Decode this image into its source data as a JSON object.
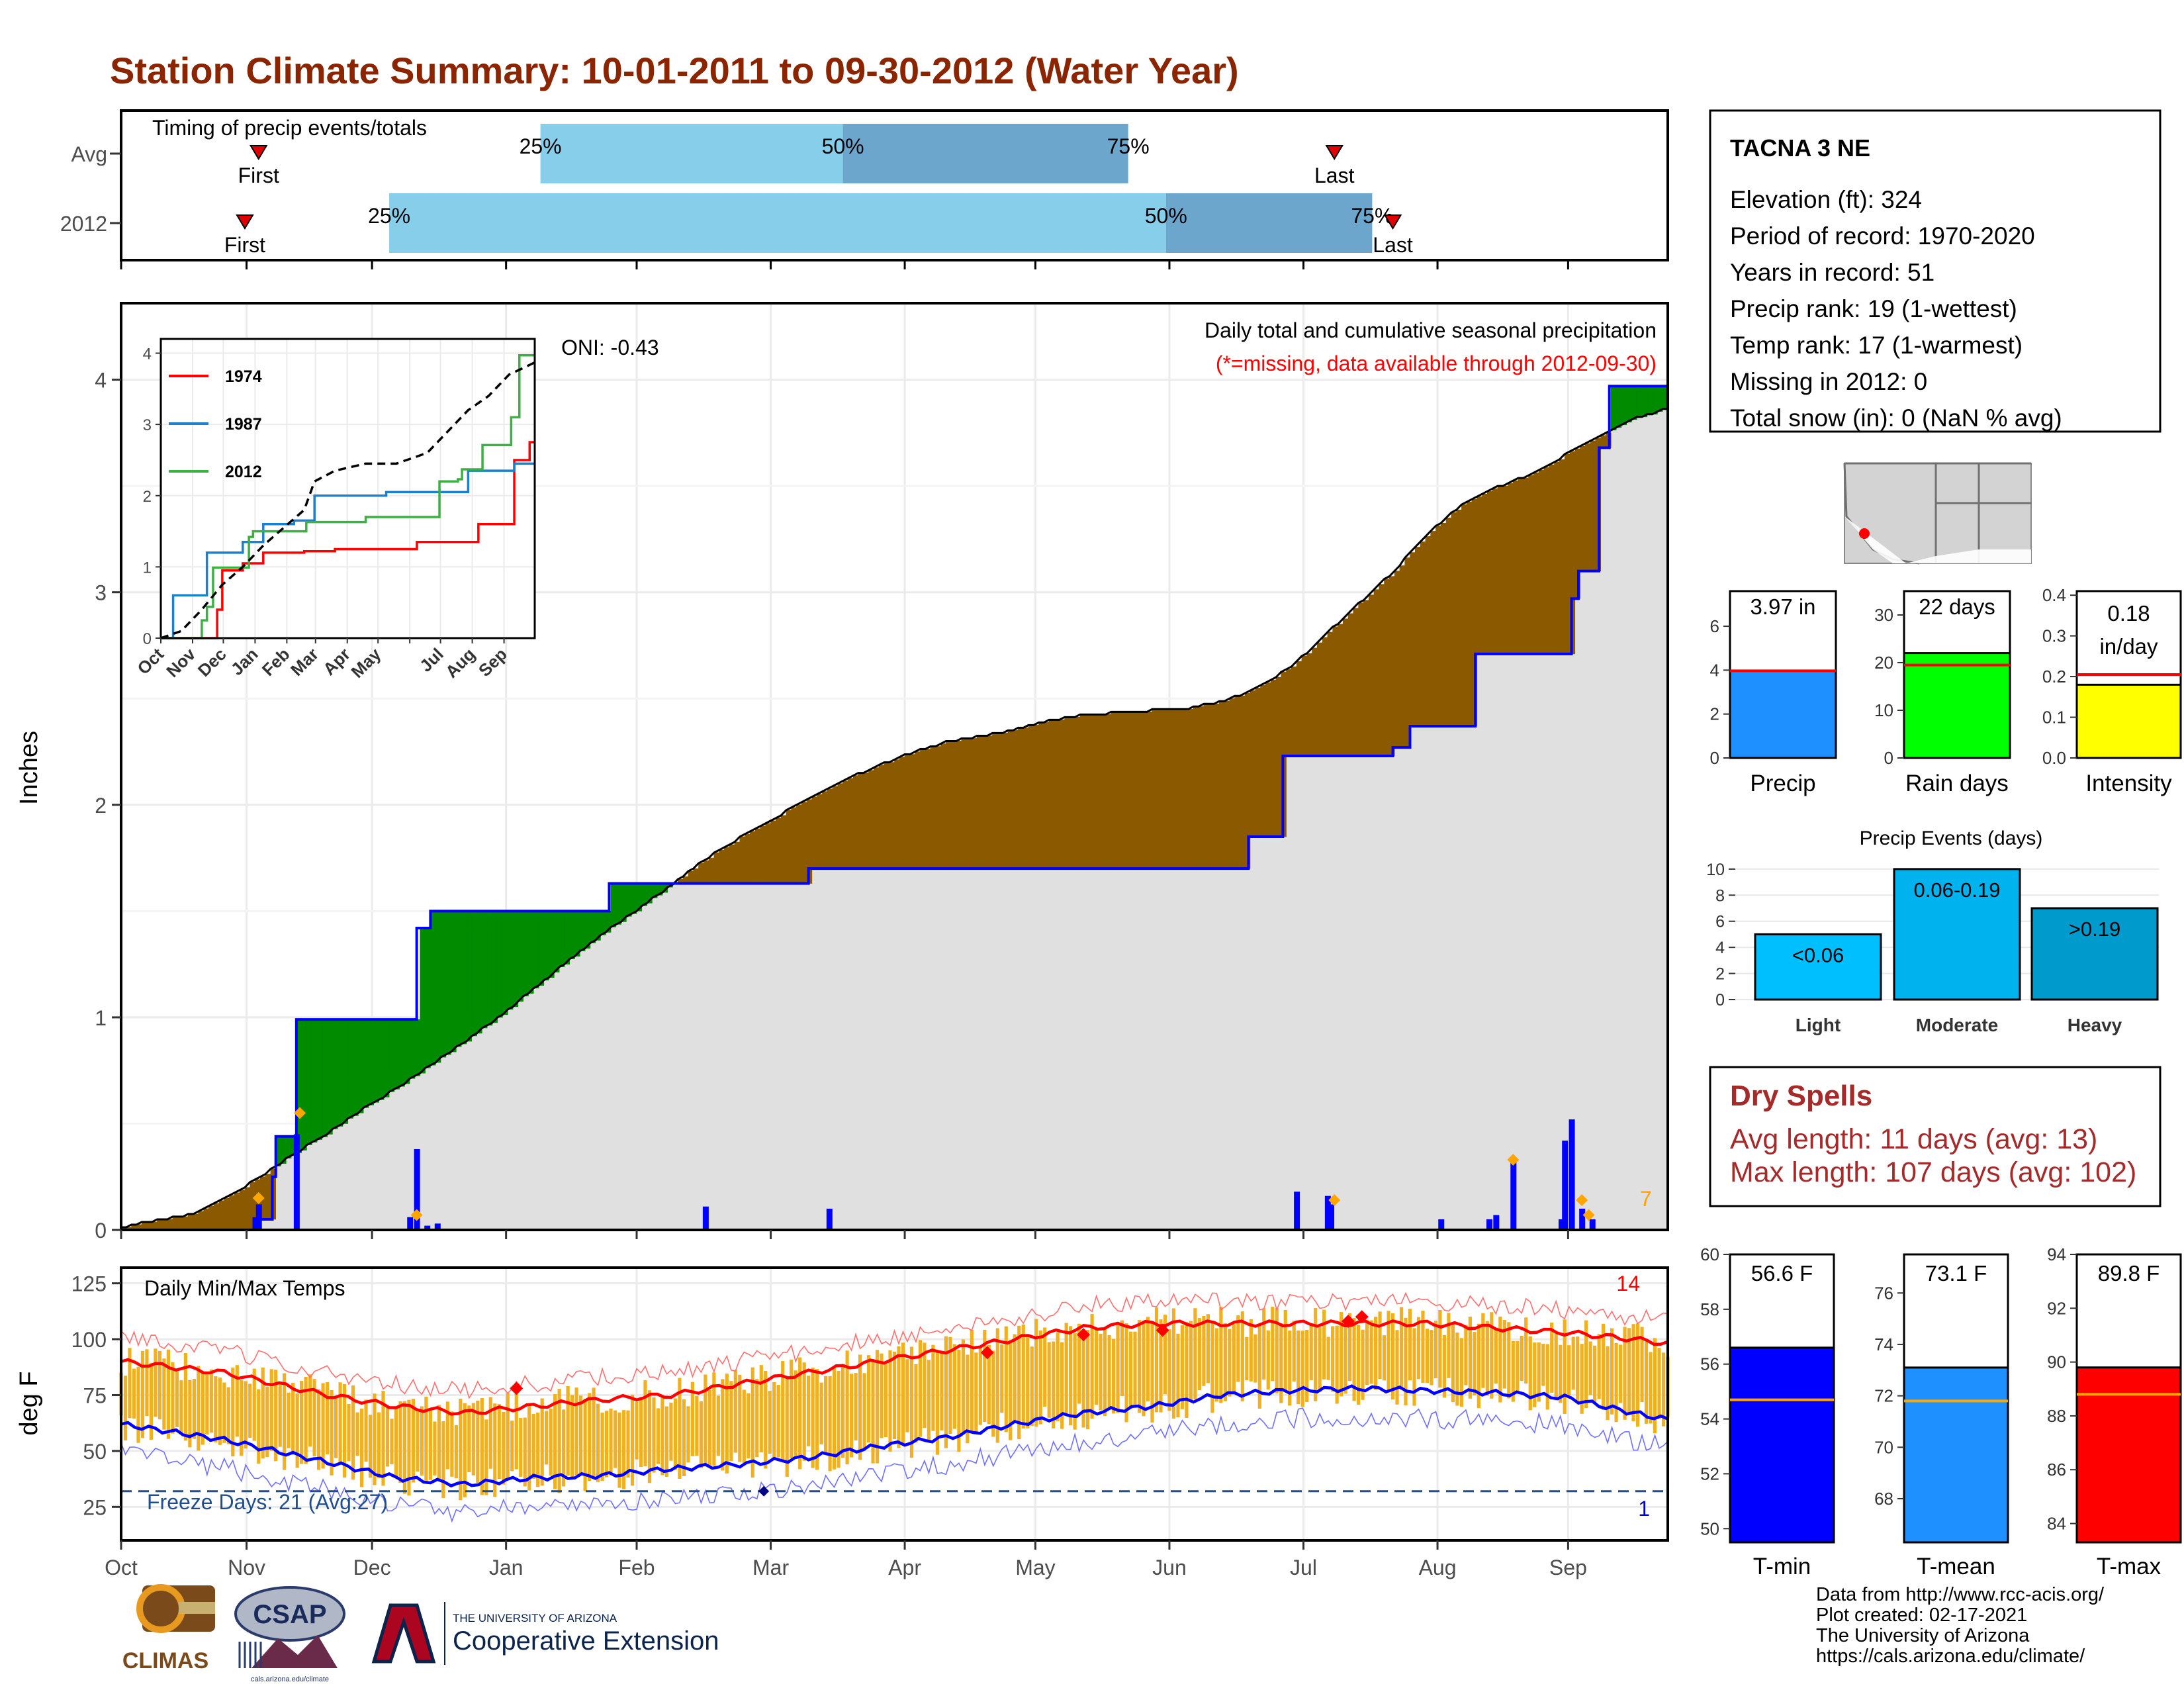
{
  "title": "Station Climate Summary: 10-01-2011 to 09-30-2012 (Water Year)",
  "months": [
    "Oct",
    "Nov",
    "Dec",
    "Jan",
    "Feb",
    "Mar",
    "Apr",
    "May",
    "Jun",
    "Jul",
    "Aug",
    "Sep"
  ],
  "colors": {
    "title": "#8B2500",
    "brown": "#8B5A00",
    "green": "#008B00",
    "gray": "#E0E0E0",
    "blue": "#0000FF",
    "orange": "#FFA500",
    "tempbar": "#F0B020",
    "red": "#FF0000",
    "lightblue": "#87CEEB",
    "steelblue": "#6CA6CD",
    "darkred": "#A52A2A"
  },
  "timing": {
    "title": "Timing of precip events/totals",
    "first_label": "First",
    "last_label": "Last",
    "rows": [
      {
        "label": "Avg",
        "first_day": 40,
        "p25_day": 122,
        "p50_day": 210,
        "p75_day": 293,
        "last_day": 353
      },
      {
        "label": "2012",
        "first_day": 36,
        "p25_day": 78,
        "p50_day": 304,
        "p75_day": 364,
        "last_day": 370
      }
    ],
    "pct_labels": [
      "25%",
      "50%",
      "75%"
    ]
  },
  "precip_panel": {
    "ylabel": "Inches",
    "yticks": [
      0,
      1,
      2,
      3,
      4
    ],
    "heading": "Daily total and cumulative seasonal precipitation",
    "missing_note": "(*=missing, data available through 2012-09-30)",
    "oni": "ONI: -0.43",
    "extreme_count": "7",
    "avg_cum": [
      [
        0,
        0.02
      ],
      [
        10,
        0.05
      ],
      [
        20,
        0.08
      ],
      [
        30,
        0.15
      ],
      [
        40,
        0.25
      ],
      [
        50,
        0.36
      ],
      [
        60,
        0.46
      ],
      [
        70,
        0.57
      ],
      [
        80,
        0.67
      ],
      [
        90,
        0.78
      ],
      [
        100,
        0.89
      ],
      [
        110,
        1.01
      ],
      [
        120,
        1.14
      ],
      [
        130,
        1.27
      ],
      [
        140,
        1.4
      ],
      [
        150,
        1.51
      ],
      [
        160,
        1.63
      ],
      [
        170,
        1.75
      ],
      [
        180,
        1.85
      ],
      [
        190,
        1.94
      ],
      [
        200,
        2.04
      ],
      [
        210,
        2.12
      ],
      [
        220,
        2.19
      ],
      [
        230,
        2.25
      ],
      [
        240,
        2.3
      ],
      [
        250,
        2.33
      ],
      [
        260,
        2.36
      ],
      [
        270,
        2.4
      ],
      [
        280,
        2.43
      ],
      [
        290,
        2.44
      ],
      [
        300,
        2.45
      ],
      [
        310,
        2.46
      ],
      [
        320,
        2.49
      ],
      [
        330,
        2.55
      ],
      [
        340,
        2.65
      ],
      [
        350,
        2.8
      ],
      [
        360,
        2.95
      ],
      [
        370,
        3.1
      ],
      [
        380,
        3.28
      ],
      [
        390,
        3.42
      ],
      [
        400,
        3.5
      ],
      [
        410,
        3.56
      ],
      [
        420,
        3.65
      ],
      [
        430,
        3.74
      ],
      [
        440,
        3.82
      ],
      [
        450,
        3.87
      ]
    ],
    "obs_cum": [
      [
        0,
        0
      ],
      [
        37,
        0
      ],
      [
        40,
        0.05
      ],
      [
        44,
        0.25
      ],
      [
        45,
        0.44
      ],
      [
        50,
        0.44
      ],
      [
        51,
        0.99
      ],
      [
        85,
        0.99
      ],
      [
        86,
        1.42
      ],
      [
        90,
        1.5
      ],
      [
        141,
        1.5
      ],
      [
        142,
        1.63
      ],
      [
        199,
        1.63
      ],
      [
        200,
        1.7
      ],
      [
        327,
        1.7
      ],
      [
        328,
        1.85
      ],
      [
        337,
        1.85
      ],
      [
        338,
        2.23
      ],
      [
        367,
        2.23
      ],
      [
        370,
        2.27
      ],
      [
        374,
        2.27
      ],
      [
        375,
        2.37
      ],
      [
        393,
        2.37
      ],
      [
        394,
        2.71
      ],
      [
        421,
        2.71
      ],
      [
        422,
        2.97
      ],
      [
        424,
        3.1
      ],
      [
        430,
        3.68
      ],
      [
        433,
        3.97
      ],
      [
        450,
        3.97
      ]
    ],
    "daily_bars": [
      [
        39,
        0.06
      ],
      [
        40,
        0.12
      ],
      [
        51,
        0.45
      ],
      [
        84,
        0.06
      ],
      [
        86,
        0.38
      ],
      [
        89,
        0.02
      ],
      [
        92,
        0.03
      ],
      [
        170,
        0.11
      ],
      [
        206,
        0.1
      ],
      [
        342,
        0.18
      ],
      [
        351,
        0.16
      ],
      [
        352,
        0.12
      ],
      [
        384,
        0.05
      ],
      [
        398,
        0.05
      ],
      [
        400,
        0.07
      ],
      [
        405,
        0.32
      ],
      [
        419,
        0.05
      ],
      [
        420,
        0.42
      ],
      [
        422,
        0.52
      ],
      [
        425,
        0.1
      ],
      [
        428,
        0.05
      ]
    ],
    "extreme_diamonds": [
      [
        40,
        0.15
      ],
      [
        52,
        0.55
      ],
      [
        86,
        0.07
      ],
      [
        353,
        0.14
      ],
      [
        405,
        0.33
      ],
      [
        425,
        0.14
      ],
      [
        427,
        0.07
      ]
    ]
  },
  "inset": {
    "yticks": [
      0,
      1,
      2,
      3,
      4
    ],
    "legend": [
      {
        "name": "1974",
        "color": "#FF0000"
      },
      {
        "name": "1987",
        "color": "#1E7FCB"
      },
      {
        "name": "2012",
        "color": "#3CB043"
      }
    ],
    "series": [
      {
        "name": "1974",
        "pts": [
          [
            0,
            0
          ],
          [
            45,
            0
          ],
          [
            55,
            0.4
          ],
          [
            60,
            0.95
          ],
          [
            80,
            1.05
          ],
          [
            100,
            1.2
          ],
          [
            140,
            1.22
          ],
          [
            170,
            1.25
          ],
          [
            220,
            1.25
          ],
          [
            250,
            1.35
          ],
          [
            300,
            1.35
          ],
          [
            310,
            1.6
          ],
          [
            330,
            1.6
          ],
          [
            345,
            2.5
          ],
          [
            355,
            2.5
          ],
          [
            360,
            2.75
          ],
          [
            365,
            2.75
          ]
        ]
      },
      {
        "name": "1987",
        "pts": [
          [
            0,
            0
          ],
          [
            10,
            0
          ],
          [
            12,
            0.6
          ],
          [
            30,
            0.6
          ],
          [
            45,
            1.2
          ],
          [
            75,
            1.2
          ],
          [
            80,
            1.35
          ],
          [
            100,
            1.6
          ],
          [
            130,
            1.65
          ],
          [
            140,
            1.65
          ],
          [
            150,
            2.0
          ],
          [
            210,
            2.0
          ],
          [
            220,
            2.05
          ],
          [
            290,
            2.05
          ],
          [
            300,
            2.35
          ],
          [
            340,
            2.35
          ],
          [
            345,
            2.45
          ],
          [
            360,
            2.45
          ],
          [
            365,
            2.45
          ]
        ]
      },
      {
        "name": "2012",
        "pts": [
          [
            0,
            0
          ],
          [
            37,
            0
          ],
          [
            40,
            0.25
          ],
          [
            45,
            0.44
          ],
          [
            51,
            0.99
          ],
          [
            85,
            0.99
          ],
          [
            86,
            1.42
          ],
          [
            90,
            1.5
          ],
          [
            141,
            1.5
          ],
          [
            142,
            1.63
          ],
          [
            199,
            1.63
          ],
          [
            200,
            1.7
          ],
          [
            270,
            1.7
          ],
          [
            272,
            2.2
          ],
          [
            290,
            2.23
          ],
          [
            294,
            2.37
          ],
          [
            312,
            2.37
          ],
          [
            314,
            2.71
          ],
          [
            340,
            2.71
          ],
          [
            342,
            3.1
          ],
          [
            350,
            3.97
          ],
          [
            365,
            3.97
          ]
        ]
      }
    ],
    "normal": [
      [
        0,
        0
      ],
      [
        20,
        0.1
      ],
      [
        40,
        0.4
      ],
      [
        60,
        0.75
      ],
      [
        80,
        1.0
      ],
      [
        100,
        1.3
      ],
      [
        120,
        1.55
      ],
      [
        140,
        1.8
      ],
      [
        150,
        2.2
      ],
      [
        170,
        2.35
      ],
      [
        200,
        2.45
      ],
      [
        230,
        2.45
      ],
      [
        260,
        2.6
      ],
      [
        280,
        2.9
      ],
      [
        300,
        3.2
      ],
      [
        320,
        3.4
      ],
      [
        340,
        3.7
      ],
      [
        355,
        3.8
      ],
      [
        365,
        3.87
      ]
    ]
  },
  "temp_panel": {
    "ylabel": "deg F",
    "title": "Daily Min/Max Temps",
    "yticks": [
      25,
      50,
      75,
      100,
      125
    ],
    "freeze": "Freeze Days: 21 (Avg:27)",
    "freeze_f": 32,
    "hot_count": "14",
    "cold_count": "1",
    "avg_max": [
      [
        0,
        90
      ],
      [
        30,
        85
      ],
      [
        60,
        75
      ],
      [
        80,
        70
      ],
      [
        100,
        67
      ],
      [
        120,
        70
      ],
      [
        140,
        73
      ],
      [
        160,
        75
      ],
      [
        180,
        80
      ],
      [
        200,
        85
      ],
      [
        220,
        90
      ],
      [
        240,
        95
      ],
      [
        260,
        100
      ],
      [
        280,
        105
      ],
      [
        300,
        107
      ],
      [
        320,
        107
      ],
      [
        340,
        107
      ],
      [
        360,
        107
      ],
      [
        380,
        107
      ],
      [
        400,
        105
      ],
      [
        420,
        103
      ],
      [
        440,
        100
      ],
      [
        450,
        98
      ]
    ],
    "avg_min": [
      [
        0,
        62
      ],
      [
        30,
        55
      ],
      [
        60,
        45
      ],
      [
        80,
        38
      ],
      [
        100,
        35
      ],
      [
        120,
        38
      ],
      [
        140,
        39
      ],
      [
        160,
        42
      ],
      [
        180,
        44
      ],
      [
        200,
        47
      ],
      [
        220,
        52
      ],
      [
        240,
        56
      ],
      [
        260,
        62
      ],
      [
        280,
        67
      ],
      [
        300,
        70
      ],
      [
        320,
        75
      ],
      [
        340,
        77
      ],
      [
        360,
        78
      ],
      [
        380,
        77
      ],
      [
        400,
        76
      ],
      [
        420,
        74
      ],
      [
        440,
        67
      ],
      [
        450,
        64
      ]
    ],
    "hot_diamonds": [
      [
        115,
        78
      ],
      [
        252,
        94
      ],
      [
        280,
        102
      ],
      [
        303,
        104
      ],
      [
        357,
        108
      ],
      [
        361,
        110
      ]
    ],
    "cold_diamonds": [
      [
        187,
        32
      ]
    ]
  },
  "station": {
    "name": "TACNA 3 NE",
    "lines": [
      "Elevation (ft): 324",
      "Period of record: 1970-2020",
      "Years in record: 51",
      "Precip rank: 19 (1-wettest)",
      "Temp rank: 17 (1-warmest)",
      "Missing in 2012: 0",
      "Total snow (in): 0 (NaN % avg)"
    ]
  },
  "summary_bars": [
    {
      "label": "Precip",
      "value_text": "3.97 in",
      "value": 3.97,
      "avg": 3.97,
      "ymax": 7.6,
      "yticks": [
        0,
        2,
        4,
        6
      ],
      "color": "#1E90FF"
    },
    {
      "label": "Rain days",
      "value_text": "22 days",
      "value": 22,
      "avg": 19.5,
      "ymax": 35,
      "yticks": [
        0,
        10,
        20,
        30
      ],
      "color": "#00FF00"
    },
    {
      "label": "Intensity",
      "value_text": "0.18 in/day",
      "value_lines": [
        "0.18",
        "in/day"
      ],
      "value": 0.18,
      "avg": 0.205,
      "ymax": 0.41,
      "yticks": [
        "0.0",
        "0.1",
        "0.2",
        "0.3",
        "0.4"
      ],
      "color": "#FFFF00"
    }
  ],
  "events": {
    "title": "Precip Events (days)",
    "yticks": [
      0,
      2,
      4,
      6,
      8,
      10
    ],
    "bars": [
      {
        "label": "Light",
        "range": "<0.06",
        "value": 5,
        "color": "#00BFFF"
      },
      {
        "label": "Moderate",
        "range": "0.06-0.19",
        "value": 10,
        "color": "#00B2EE"
      },
      {
        "label": "Heavy",
        "range": ">0.19",
        "value": 7,
        "color": "#009ACD"
      }
    ]
  },
  "dry_spells": {
    "title": "Dry Spells",
    "avg_length": "Avg length: 11 days (avg: 13)",
    "max_length": "Max length: 107 days (avg: 102)"
  },
  "temp_bars": [
    {
      "label": "T-min",
      "value_text": "56.6 F",
      "value": 56.6,
      "avg": 54.7,
      "ymin": 49.5,
      "ymax": 60,
      "yticks": [
        50,
        52,
        54,
        56,
        58,
        60
      ],
      "color": "#0000FF"
    },
    {
      "label": "T-mean",
      "value_text": "73.1 F",
      "value": 73.1,
      "avg": 71.8,
      "ymin": 66.3,
      "ymax": 77.5,
      "yticks": [
        68,
        70,
        72,
        74,
        76
      ],
      "color": "#1E90FF"
    },
    {
      "label": "T-max",
      "value_text": "89.8 F",
      "value": 89.8,
      "avg": 88.8,
      "ymin": 83.3,
      "ymax": 94,
      "yticks": [
        84,
        86,
        88,
        90,
        92,
        94
      ],
      "color": "#FF0000"
    }
  ],
  "footer": {
    "lines": [
      "Data from http://www.rcc-acis.org/",
      "Plot created: 02-17-2021",
      "The University of Arizona",
      "https://cals.arizona.edu/climate/"
    ],
    "climas": "CLIMAS",
    "csap": "CSAP",
    "csap_url": "cals.arizona.edu/climate",
    "ua_small": "THE UNIVERSITY OF ARIZONA",
    "ua_big": "Cooperative Extension"
  }
}
